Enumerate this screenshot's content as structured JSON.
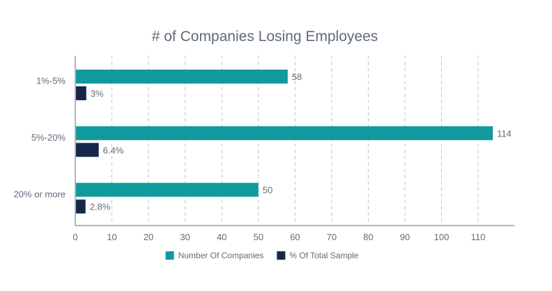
{
  "chart_data": {
    "type": "bar",
    "orientation": "horizontal",
    "title": "# of Companies Losing Employees",
    "xlabel": "",
    "ylabel": "",
    "categories": [
      "1%-5%",
      "5%-20%",
      "20% or more"
    ],
    "series": [
      {
        "name": "Number Of Companies",
        "values": [
          58,
          114,
          50
        ],
        "labels": [
          "58",
          "114",
          "50"
        ],
        "color": "#119a9e"
      },
      {
        "name": "% Of Total Sample",
        "values": [
          3,
          6.4,
          2.8
        ],
        "labels": [
          "3%",
          "6.4%",
          "2.8%"
        ],
        "color": "#16274a"
      }
    ],
    "xlim": [
      0,
      120
    ],
    "xticks": [
      0,
      10,
      20,
      30,
      40,
      50,
      60,
      70,
      80,
      90,
      100,
      110
    ],
    "grid": "vertical dashed",
    "legend_position": "bottom"
  }
}
